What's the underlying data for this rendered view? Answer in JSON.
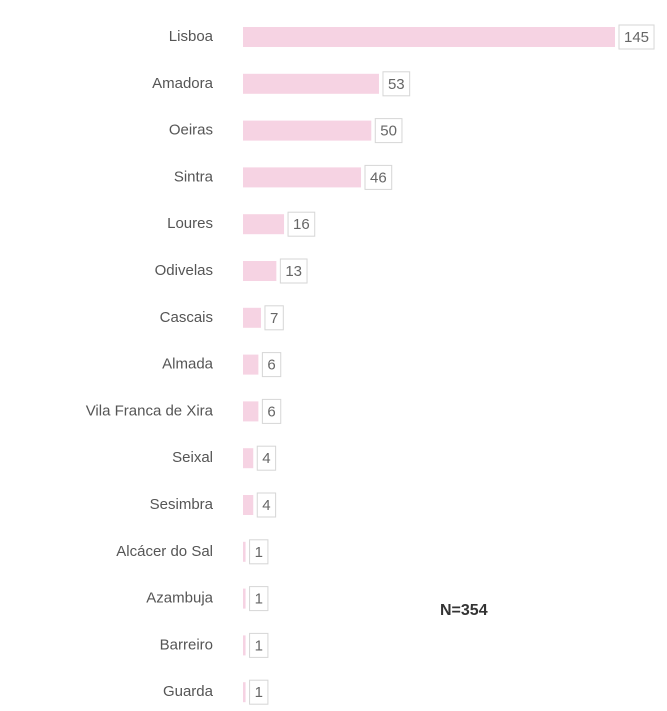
{
  "chart_data": {
    "type": "bar",
    "orientation": "horizontal",
    "categories": [
      "Lisboa",
      "Amadora",
      "Oeiras",
      "Sintra",
      "Loures",
      "Odivelas",
      "Cascais",
      "Almada",
      "Vila Franca de Xira",
      "Seixal",
      "Sesimbra",
      "Alcácer do Sal",
      "Azambuja",
      "Barreiro",
      "Guarda"
    ],
    "values": [
      145,
      53,
      50,
      46,
      16,
      13,
      7,
      6,
      6,
      4,
      4,
      1,
      1,
      1,
      1
    ],
    "color": "#f6d3e3",
    "annotation": "N=354"
  }
}
